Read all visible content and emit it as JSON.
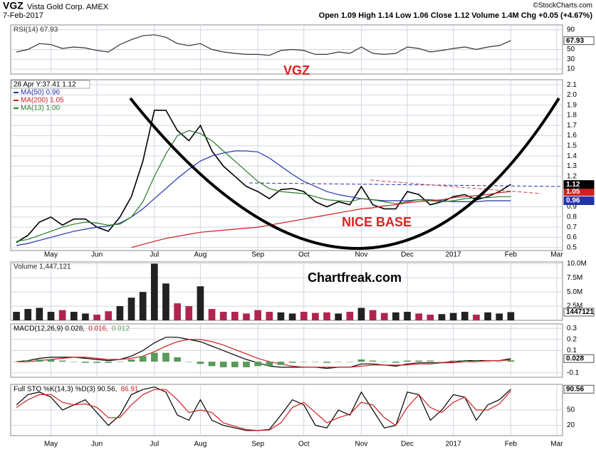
{
  "header": {
    "symbol": "VGZ",
    "company": "Vista Gold Corp. AMEX",
    "source": "©StockCharts.com",
    "date": "7-Feb-2017",
    "quote": "Open 1.09  High 1.14  Low 1.06  Close 1.12  Volume 1.4M  Chg +0.05 (+4.67%)"
  },
  "chart_data": [
    {
      "type": "line",
      "ylim": [
        0,
        100
      ],
      "yticks": [
        90,
        50,
        30,
        10
      ],
      "grid": true,
      "series": [
        {
          "name": "RSI(14) 67.93",
          "color": "#333333",
          "values": [
            45,
            50,
            62,
            60,
            52,
            55,
            53,
            48,
            45,
            60,
            70,
            78,
            80,
            75,
            62,
            58,
            62,
            50,
            45,
            42,
            40,
            40,
            38,
            48,
            50,
            48,
            40,
            40,
            45,
            42,
            55,
            42,
            40,
            42,
            55,
            52,
            45,
            48,
            52,
            55,
            50,
            55,
            58,
            67.93,
            null,
            null,
            null,
            null
          ]
        }
      ]
    },
    {
      "type": "line",
      "ylim": [
        0.47,
        2.15
      ],
      "yticks": [
        0.5,
        0.6,
        0.7,
        0.8,
        0.9,
        1.2,
        1.3,
        1.4,
        1.5,
        1.6,
        1.7,
        1.8,
        1.9,
        {
          "value": 2,
          "label": "2.0"
        },
        2.1
      ],
      "grid": true,
      "cursor_label": "28 Apr Y:37.41  1.12",
      "annotations": [
        "VGZ",
        "NICE BASE",
        "Chartfreak.com"
      ],
      "categories": [
        null,
        null,
        null,
        "May",
        null,
        null,
        null,
        "Jun",
        null,
        null,
        null,
        null,
        "Jul",
        null,
        null,
        null,
        "Aug",
        null,
        null,
        null,
        null,
        "Sep",
        null,
        null,
        null,
        "Oct",
        null,
        null,
        null,
        null,
        "Nov",
        null,
        null,
        null,
        "Dec",
        null,
        null,
        null,
        "2017",
        null,
        null,
        null,
        null,
        "Feb",
        null,
        null,
        null,
        "Mar"
      ],
      "series": [
        {
          "color": "#000000",
          "values": [
            0.55,
            0.62,
            0.75,
            0.8,
            0.72,
            0.78,
            0.78,
            0.7,
            0.66,
            0.8,
            1.0,
            1.35,
            1.85,
            1.85,
            1.65,
            1.55,
            1.7,
            1.45,
            1.3,
            1.2,
            1.1,
            1.05,
            0.98,
            1.07,
            1.08,
            1.05,
            0.95,
            0.9,
            0.95,
            0.92,
            1.1,
            0.92,
            0.88,
            0.88,
            1.05,
            1.02,
            0.92,
            0.95,
            1.0,
            1.02,
            0.97,
            1.0,
            1.05,
            1.12,
            null,
            null,
            null,
            null
          ]
        },
        {
          "name": "MA(50) 0.96",
          "color": "#2233aa",
          "values": [
            0.52,
            0.54,
            0.57,
            0.6,
            0.63,
            0.66,
            0.68,
            0.7,
            0.71,
            0.74,
            0.8,
            0.88,
            0.98,
            1.08,
            1.18,
            1.27,
            1.35,
            1.4,
            1.43,
            1.45,
            1.45,
            1.44,
            1.38,
            1.3,
            1.22,
            1.15,
            1.1,
            1.05,
            1.02,
            1.0,
            0.98,
            0.97,
            0.96,
            0.96,
            0.96,
            0.97,
            0.97,
            0.96,
            0.95,
            0.95,
            0.95,
            0.96,
            0.96,
            0.96,
            null,
            null,
            null,
            null
          ]
        },
        {
          "name": "MA(200) 1.05",
          "color": "#cc2222",
          "values": [
            null,
            null,
            null,
            null,
            null,
            null,
            null,
            null,
            null,
            null,
            0.5,
            0.53,
            0.56,
            0.59,
            0.61,
            0.63,
            0.65,
            0.66,
            0.67,
            0.68,
            0.69,
            0.7,
            0.72,
            0.74,
            0.76,
            0.78,
            0.8,
            0.82,
            0.84,
            0.86,
            0.88,
            0.89,
            0.91,
            0.92,
            0.94,
            0.95,
            0.96,
            0.97,
            0.99,
            1.0,
            1.01,
            1.02,
            1.04,
            1.05,
            null,
            null,
            null,
            null
          ]
        },
        {
          "name": "MA(13) 1.00",
          "color": "#2a7a2a",
          "values": [
            0.56,
            0.58,
            0.62,
            0.66,
            0.7,
            0.73,
            0.75,
            0.74,
            0.72,
            0.73,
            0.8,
            0.95,
            1.2,
            1.42,
            1.6,
            1.65,
            1.62,
            1.55,
            1.45,
            1.35,
            1.25,
            1.15,
            1.08,
            1.05,
            1.04,
            1.03,
            1.0,
            0.97,
            0.96,
            0.95,
            0.98,
            0.97,
            0.95,
            0.93,
            0.95,
            0.97,
            0.96,
            0.95,
            0.96,
            0.98,
            0.99,
            0.99,
            1.0,
            1.0,
            null,
            null,
            null,
            null
          ]
        }
      ]
    },
    {
      "type": "bar",
      "ylim": [
        0,
        10300000
      ],
      "yticks": [
        {
          "value": 2500000,
          "label": "2.5M"
        },
        {
          "value": 5000000,
          "label": "5.0M"
        },
        {
          "value": 7500000,
          "label": "7.5M"
        },
        {
          "value": 10000000,
          "label": "10.0M"
        }
      ],
      "grid": true,
      "series": [
        {
          "name": "Volume 1,447,121",
          "color": "#222222",
          "down_color": "#b0254f",
          "values": [
            1500000,
            2000000,
            2200000,
            1500000,
            1800000,
            1500000,
            1200000,
            1000000,
            1600000,
            2500000,
            4000000,
            5000000,
            10000000,
            6500000,
            3000000,
            2500000,
            6000000,
            2000000,
            1500000,
            1500000,
            1200000,
            1800000,
            1500000,
            1400000,
            1200000,
            1500000,
            1300000,
            1400000,
            1200000,
            1500000,
            2200000,
            1800000,
            1300000,
            1400000,
            1500000,
            1200000,
            1000000,
            1100000,
            1300000,
            1500000,
            1000000,
            1400000,
            1200000,
            1447121,
            null,
            null,
            null,
            null
          ]
        }
      ]
    },
    {
      "type": "line",
      "ylim": [
        -0.14,
        0.34
      ],
      "yticks": [
        -0.1,
        0.1,
        0.2,
        0.3
      ],
      "grid": true,
      "series": [
        {
          "name": "MACD(12,26,9) 0.028,",
          "color": "#000000",
          "values": [
            0.0,
            0.01,
            0.03,
            0.04,
            0.04,
            0.04,
            0.03,
            0.02,
            0.01,
            0.02,
            0.05,
            0.1,
            0.17,
            0.22,
            0.22,
            0.2,
            0.18,
            0.14,
            0.1,
            0.06,
            0.02,
            -0.01,
            -0.04,
            -0.05,
            -0.05,
            -0.05,
            -0.05,
            -0.06,
            -0.05,
            -0.05,
            -0.02,
            -0.02,
            -0.03,
            -0.04,
            -0.02,
            -0.01,
            -0.01,
            -0.01,
            0.0,
            0.01,
            0.01,
            0.01,
            0.01,
            0.028,
            null,
            null,
            null,
            null
          ]
        },
        {
          "name": "0.016,",
          "color": "#cc2222",
          "values": [
            0.0,
            0.0,
            0.01,
            0.02,
            0.03,
            0.04,
            0.04,
            0.03,
            0.02,
            0.02,
            0.03,
            0.05,
            0.09,
            0.14,
            0.18,
            0.2,
            0.2,
            0.18,
            0.15,
            0.11,
            0.07,
            0.03,
            0.0,
            -0.02,
            -0.04,
            -0.05,
            -0.05,
            -0.05,
            -0.05,
            -0.05,
            -0.04,
            -0.03,
            -0.03,
            -0.03,
            -0.03,
            -0.02,
            -0.02,
            -0.01,
            -0.01,
            0.0,
            0.0,
            0.01,
            0.01,
            0.016,
            null,
            null,
            null,
            null
          ]
        },
        {
          "name": "0.012",
          "color": "#5a9a5a",
          "style": "bar",
          "values": [
            0,
            0.01,
            0.02,
            0.02,
            0.01,
            0,
            -0.01,
            -0.01,
            -0.01,
            0,
            0.02,
            0.05,
            0.08,
            0.08,
            0.04,
            0,
            -0.02,
            -0.04,
            -0.05,
            -0.05,
            -0.05,
            -0.04,
            -0.04,
            -0.03,
            -0.01,
            0,
            0,
            -0.01,
            0,
            0,
            0.02,
            0.01,
            0,
            -0.01,
            0.01,
            0.01,
            0.01,
            0,
            0.01,
            0.01,
            0.01,
            0,
            0,
            0.012,
            null,
            null,
            null,
            null
          ]
        }
      ]
    },
    {
      "type": "line",
      "ylim": [
        0,
        100
      ],
      "yticks": [
        20,
        50
      ],
      "grid": true,
      "series": [
        {
          "name": "Full STO %K(14,3) %D(3) 90.56,",
          "color": "#000000",
          "values": [
            60,
            80,
            85,
            75,
            50,
            60,
            70,
            45,
            20,
            40,
            80,
            90,
            95,
            85,
            40,
            30,
            70,
            30,
            20,
            15,
            10,
            10,
            12,
            40,
            70,
            60,
            20,
            15,
            50,
            40,
            85,
            50,
            15,
            20,
            85,
            80,
            30,
            50,
            80,
            75,
            30,
            60,
            70,
            90.56,
            null,
            null,
            null,
            null
          ]
        },
        {
          "name": "86.91",
          "color": "#cc2222",
          "values": [
            55,
            70,
            80,
            80,
            65,
            60,
            62,
            55,
            35,
            35,
            60,
            80,
            90,
            90,
            70,
            45,
            50,
            45,
            25,
            18,
            12,
            10,
            11,
            25,
            55,
            65,
            45,
            25,
            35,
            42,
            65,
            60,
            35,
            20,
            55,
            80,
            55,
            45,
            65,
            75,
            50,
            50,
            62,
            86.91,
            null,
            null,
            null,
            null
          ]
        }
      ]
    }
  ]
}
